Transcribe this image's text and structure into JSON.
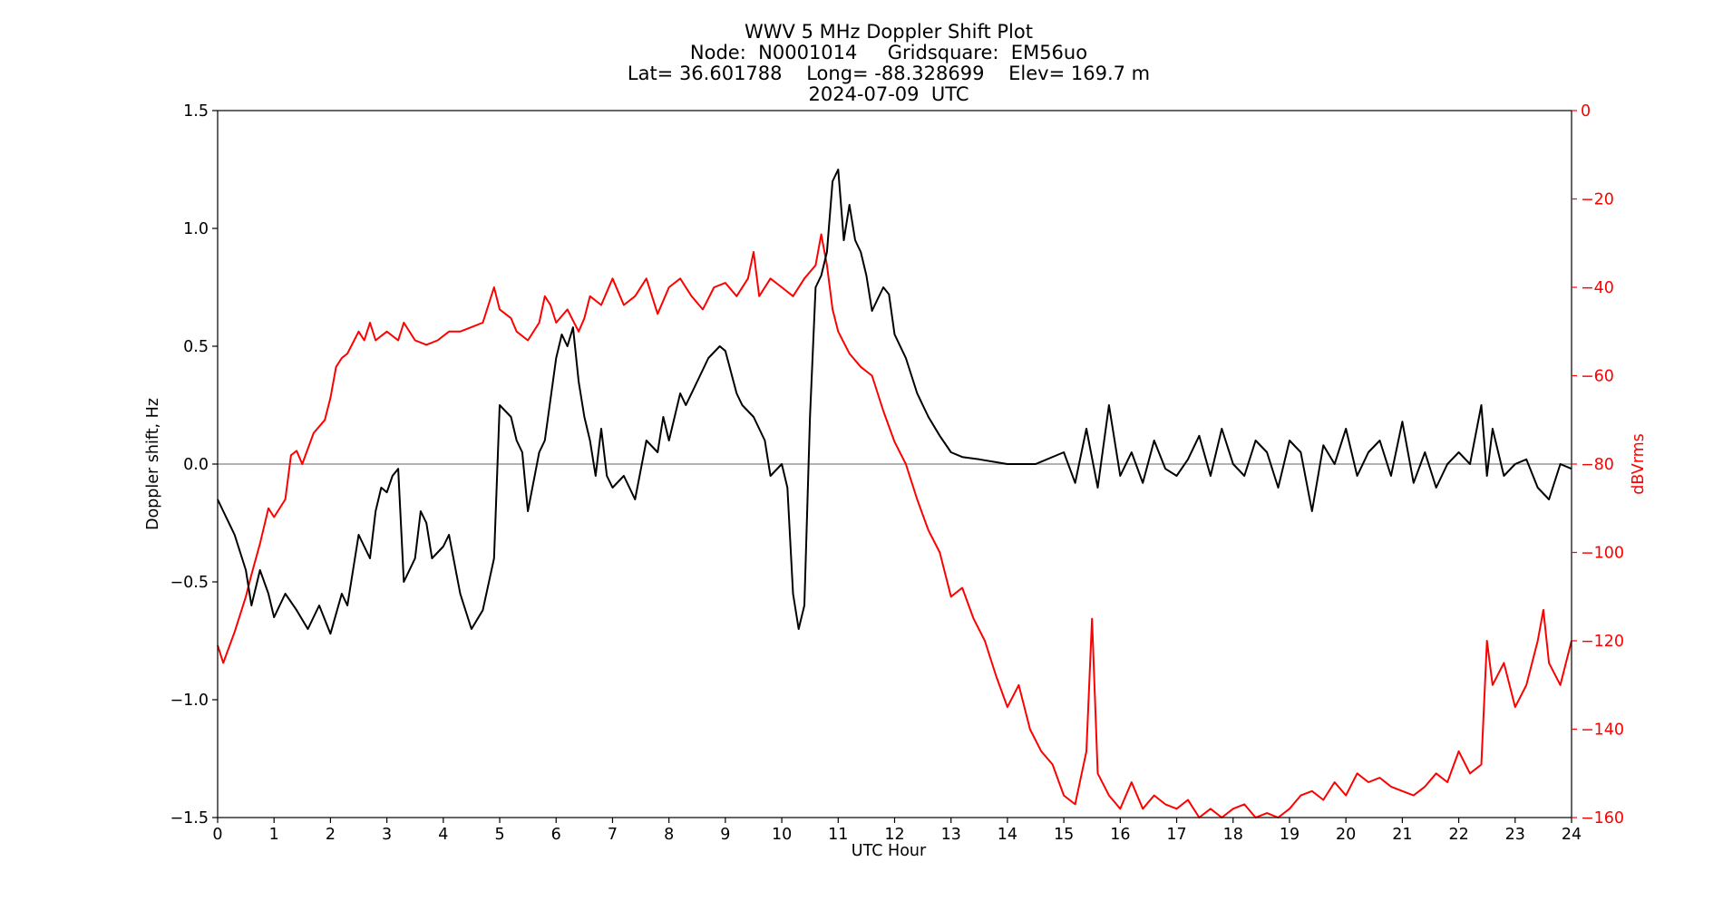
{
  "chart_data": {
    "type": "line",
    "title_lines": [
      "WWV 5 MHz Doppler Shift Plot",
      "Node:  N0001014     Gridsquare:  EM56uo",
      "Lat= 36.601788    Long= -88.328699    Elev= 169.7 m",
      "2024-07-09  UTC"
    ],
    "xlabel": "UTC Hour",
    "ylabel": "Doppler shift, Hz",
    "ylabel_right": "dBVrms",
    "xlim": [
      0,
      24
    ],
    "ylim": [
      -1.5,
      1.5
    ],
    "ylim_right": [
      -160,
      0
    ],
    "x_ticks": [
      0,
      1,
      2,
      3,
      4,
      5,
      6,
      7,
      8,
      9,
      10,
      11,
      12,
      13,
      14,
      15,
      16,
      17,
      18,
      19,
      20,
      21,
      22,
      23,
      24
    ],
    "x_tick_labels": [
      "0",
      "1",
      "2",
      "3",
      "4",
      "5",
      "6",
      "7",
      "8",
      "9",
      "10",
      "11",
      "12",
      "13",
      "14",
      "15",
      "16",
      "17",
      "18",
      "19",
      "20",
      "21",
      "22",
      "23",
      "24"
    ],
    "y_ticks": [
      -1.5,
      -1.0,
      -0.5,
      0.0,
      0.5,
      1.0,
      1.5
    ],
    "y_tick_labels": [
      "−1.5",
      "−1.0",
      "−0.5",
      "0.0",
      "0.5",
      "1.0",
      "1.5"
    ],
    "y_ticks_right": [
      0,
      -20,
      -40,
      -60,
      -80,
      -100,
      -120,
      -140,
      -160
    ],
    "y_tick_labels_right": [
      "0",
      "−20",
      "−40",
      "−60",
      "−80",
      "−100",
      "−120",
      "−140",
      "−160"
    ],
    "zero_line": 0.0,
    "grid": false,
    "series": [
      {
        "axis": "left",
        "color": "#000000",
        "x": [
          0,
          0.1,
          0.3,
          0.5,
          0.6,
          0.75,
          0.9,
          1.0,
          1.2,
          1.4,
          1.6,
          1.8,
          2.0,
          2.2,
          2.3,
          2.4,
          2.5,
          2.6,
          2.7,
          2.8,
          2.9,
          3.0,
          3.1,
          3.2,
          3.3,
          3.5,
          3.6,
          3.7,
          3.8,
          4.0,
          4.1,
          4.3,
          4.5,
          4.7,
          4.9,
          5.0,
          5.2,
          5.3,
          5.4,
          5.5,
          5.7,
          5.8,
          6.0,
          6.1,
          6.2,
          6.3,
          6.4,
          6.5,
          6.6,
          6.7,
          6.8,
          6.9,
          7.0,
          7.2,
          7.4,
          7.6,
          7.8,
          7.9,
          8.0,
          8.2,
          8.3,
          8.5,
          8.7,
          8.9,
          9.0,
          9.2,
          9.3,
          9.5,
          9.7,
          9.8,
          10.0,
          10.1,
          10.2,
          10.3,
          10.4,
          10.5,
          10.6,
          10.7,
          10.8,
          10.9,
          11.0,
          11.1,
          11.2,
          11.3,
          11.4,
          11.5,
          11.6,
          11.7,
          11.8,
          11.9,
          12.0,
          12.2,
          12.4,
          12.6,
          12.8,
          13.0,
          13.2,
          13.5,
          14.0,
          14.5,
          15.0,
          15.2,
          15.4,
          15.6,
          15.8,
          16.0,
          16.2,
          16.4,
          16.6,
          16.8,
          17.0,
          17.2,
          17.4,
          17.6,
          17.8,
          18.0,
          18.2,
          18.4,
          18.6,
          18.8,
          19.0,
          19.2,
          19.4,
          19.6,
          19.8,
          20.0,
          20.2,
          20.4,
          20.6,
          20.8,
          21.0,
          21.2,
          21.4,
          21.6,
          21.8,
          22.0,
          22.2,
          22.4,
          22.5,
          22.6,
          22.8,
          23.0,
          23.2,
          23.4,
          23.6,
          23.8,
          24.0
        ],
        "y": [
          -0.15,
          -0.2,
          -0.3,
          -0.45,
          -0.6,
          -0.45,
          -0.55,
          -0.65,
          -0.55,
          -0.62,
          -0.7,
          -0.6,
          -0.72,
          -0.55,
          -0.6,
          -0.45,
          -0.3,
          -0.35,
          -0.4,
          -0.2,
          -0.1,
          -0.12,
          -0.05,
          -0.02,
          -0.5,
          -0.4,
          -0.2,
          -0.25,
          -0.4,
          -0.35,
          -0.3,
          -0.55,
          -0.7,
          -0.62,
          -0.4,
          0.25,
          0.2,
          0.1,
          0.05,
          -0.2,
          0.05,
          0.1,
          0.45,
          0.55,
          0.5,
          0.58,
          0.35,
          0.2,
          0.1,
          -0.05,
          0.15,
          -0.05,
          -0.1,
          -0.05,
          -0.15,
          0.1,
          0.05,
          0.2,
          0.1,
          0.3,
          0.25,
          0.35,
          0.45,
          0.5,
          0.48,
          0.3,
          0.25,
          0.2,
          0.1,
          -0.05,
          0.0,
          -0.1,
          -0.55,
          -0.7,
          -0.6,
          0.2,
          0.75,
          0.8,
          0.9,
          1.2,
          1.25,
          0.95,
          1.1,
          0.95,
          0.9,
          0.8,
          0.65,
          0.7,
          0.75,
          0.72,
          0.55,
          0.45,
          0.3,
          0.2,
          0.12,
          0.05,
          0.03,
          0.02,
          0.0,
          0.0,
          0.05,
          -0.08,
          0.15,
          -0.1,
          0.25,
          -0.05,
          0.05,
          -0.08,
          0.1,
          -0.02,
          -0.05,
          0.02,
          0.12,
          -0.05,
          0.15,
          0.0,
          -0.05,
          0.1,
          0.05,
          -0.1,
          0.1,
          0.05,
          -0.2,
          0.08,
          0.0,
          0.15,
          -0.05,
          0.05,
          0.1,
          -0.05,
          0.18,
          -0.08,
          0.05,
          -0.1,
          0.0,
          0.05,
          0.0,
          0.25,
          -0.05,
          0.15,
          -0.05,
          0.0,
          0.02,
          -0.1,
          -0.15,
          0.0,
          -0.02
        ]
      },
      {
        "axis": "right",
        "color": "#ff0000",
        "x": [
          0,
          0.1,
          0.3,
          0.5,
          0.6,
          0.75,
          0.9,
          1.0,
          1.2,
          1.3,
          1.4,
          1.5,
          1.7,
          1.9,
          2.0,
          2.1,
          2.2,
          2.3,
          2.5,
          2.6,
          2.7,
          2.8,
          3.0,
          3.2,
          3.3,
          3.5,
          3.7,
          3.9,
          4.1,
          4.3,
          4.5,
          4.7,
          4.9,
          5.0,
          5.2,
          5.3,
          5.5,
          5.7,
          5.8,
          5.9,
          6.0,
          6.2,
          6.4,
          6.5,
          6.6,
          6.8,
          7.0,
          7.2,
          7.4,
          7.6,
          7.8,
          8.0,
          8.2,
          8.4,
          8.6,
          8.8,
          9.0,
          9.2,
          9.4,
          9.5,
          9.6,
          9.8,
          10.0,
          10.2,
          10.4,
          10.6,
          10.7,
          10.8,
          10.9,
          11.0,
          11.2,
          11.4,
          11.6,
          11.8,
          12.0,
          12.2,
          12.4,
          12.6,
          12.8,
          13.0,
          13.2,
          13.4,
          13.6,
          13.8,
          14.0,
          14.2,
          14.4,
          14.6,
          14.8,
          15.0,
          15.2,
          15.4,
          15.5,
          15.6,
          15.8,
          16.0,
          16.2,
          16.4,
          16.6,
          16.8,
          17.0,
          17.2,
          17.4,
          17.6,
          17.8,
          18.0,
          18.2,
          18.4,
          18.6,
          18.8,
          19.0,
          19.2,
          19.4,
          19.6,
          19.8,
          20.0,
          20.2,
          20.4,
          20.6,
          20.8,
          21.0,
          21.2,
          21.4,
          21.6,
          21.8,
          22.0,
          22.2,
          22.4,
          22.5,
          22.6,
          22.8,
          23.0,
          23.2,
          23.4,
          23.5,
          23.6,
          23.8,
          24.0
        ],
        "y": [
          -121,
          -125,
          -118,
          -110,
          -105,
          -98,
          -90,
          -92,
          -88,
          -78,
          -77,
          -80,
          -73,
          -70,
          -65,
          -58,
          -56,
          -55,
          -50,
          -52,
          -48,
          -52,
          -50,
          -52,
          -48,
          -52,
          -53,
          -52,
          -50,
          -50,
          -49,
          -48,
          -40,
          -45,
          -47,
          -50,
          -52,
          -48,
          -42,
          -44,
          -48,
          -45,
          -50,
          -47,
          -42,
          -44,
          -38,
          -44,
          -42,
          -38,
          -46,
          -40,
          -38,
          -42,
          -45,
          -40,
          -39,
          -42,
          -38,
          -32,
          -42,
          -38,
          -40,
          -42,
          -38,
          -35,
          -28,
          -35,
          -45,
          -50,
          -55,
          -58,
          -60,
          -68,
          -75,
          -80,
          -88,
          -95,
          -100,
          -110,
          -108,
          -115,
          -120,
          -128,
          -135,
          -130,
          -140,
          -145,
          -148,
          -155,
          -157,
          -145,
          -115,
          -150,
          -155,
          -158,
          -152,
          -158,
          -155,
          -157,
          -158,
          -156,
          -160,
          -158,
          -160,
          -158,
          -157,
          -160,
          -159,
          -160,
          -158,
          -155,
          -154,
          -156,
          -152,
          -155,
          -150,
          -152,
          -151,
          -153,
          -154,
          -155,
          -153,
          -150,
          -152,
          -145,
          -150,
          -148,
          -120,
          -130,
          -125,
          -135,
          -130,
          -120,
          -113,
          -125,
          -130,
          -120
        ]
      }
    ]
  }
}
